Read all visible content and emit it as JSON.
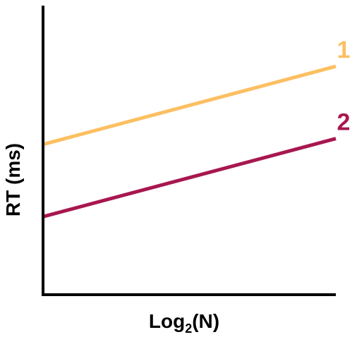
{
  "chart_data": {
    "type": "line",
    "title": "",
    "xlabel": {
      "base": "Log",
      "subscript": "2",
      "argument": "(N)"
    },
    "ylabel": "RT (ms)",
    "xlim": [
      0,
      1
    ],
    "ylim": [
      0,
      1
    ],
    "grid": false,
    "legend": "inline labels at line ends",
    "series": [
      {
        "label": "1",
        "color": "#FCBF61",
        "x": [
          0,
          1
        ],
        "y": [
          0.52,
          0.79
        ]
      },
      {
        "label": "2",
        "color": "#A8174F",
        "x": [
          0,
          1
        ],
        "y": [
          0.27,
          0.54
        ]
      }
    ]
  }
}
